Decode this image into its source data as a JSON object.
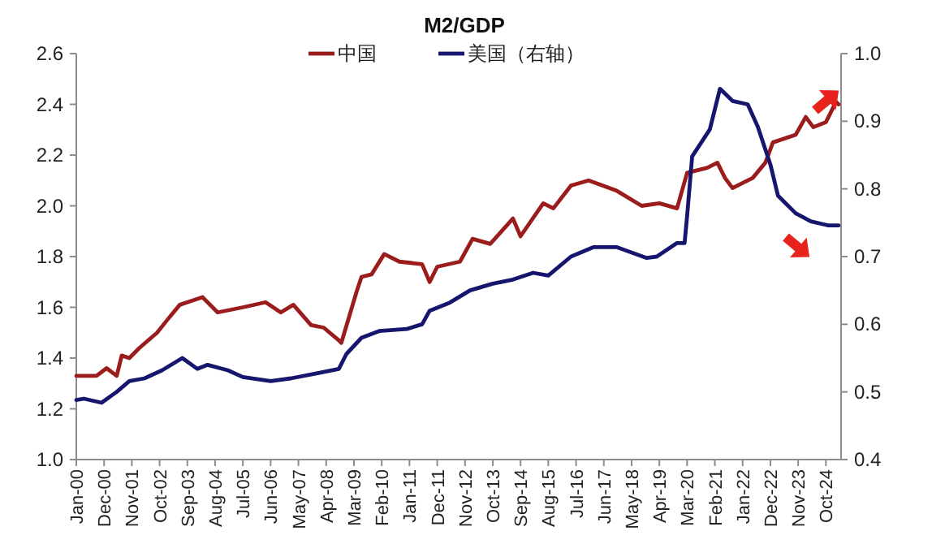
{
  "chart_data": {
    "type": "line",
    "title": "M2/GDP",
    "legend": "top",
    "line_style": "solid",
    "grid": false,
    "xlim": [
      "2000-01",
      "2025-04"
    ],
    "xticks": [
      {
        "value": "2000-01",
        "label": "Jan-00"
      },
      {
        "value": "2000-12",
        "label": "Dec-00"
      },
      {
        "value": "2001-11",
        "label": "Nov-01"
      },
      {
        "value": "2002-10",
        "label": "Oct-02"
      },
      {
        "value": "2003-09",
        "label": "Sep-03"
      },
      {
        "value": "2004-08",
        "label": "Aug-04"
      },
      {
        "value": "2005-07",
        "label": "Jul-05"
      },
      {
        "value": "2006-06",
        "label": "Jun-06"
      },
      {
        "value": "2007-05",
        "label": "May-07"
      },
      {
        "value": "2008-04",
        "label": "Apr-08"
      },
      {
        "value": "2009-03",
        "label": "Mar-09"
      },
      {
        "value": "2010-02",
        "label": "Feb-10"
      },
      {
        "value": "2011-01",
        "label": "Jan-11"
      },
      {
        "value": "2011-12",
        "label": "Dec-11"
      },
      {
        "value": "2012-11",
        "label": "Nov-12"
      },
      {
        "value": "2013-10",
        "label": "Oct-13"
      },
      {
        "value": "2014-09",
        "label": "Sep-14"
      },
      {
        "value": "2015-08",
        "label": "Aug-15"
      },
      {
        "value": "2016-07",
        "label": "Jul-16"
      },
      {
        "value": "2017-06",
        "label": "Jun-17"
      },
      {
        "value": "2018-05",
        "label": "May-18"
      },
      {
        "value": "2019-04",
        "label": "Apr-19"
      },
      {
        "value": "2020-03",
        "label": "Mar-20"
      },
      {
        "value": "2021-02",
        "label": "Feb-21"
      },
      {
        "value": "2022-01",
        "label": "Jan-22"
      },
      {
        "value": "2022-12",
        "label": "Dec-22"
      },
      {
        "value": "2023-11",
        "label": "Nov-23"
      },
      {
        "value": "2024-10",
        "label": "Oct-24"
      }
    ],
    "ylim": [
      1.0,
      2.6
    ],
    "yticks": [
      {
        "value": 1,
        "label": "1.0"
      },
      1.2,
      1.4,
      1.6,
      1.8,
      {
        "value": 2,
        "label": "2.0"
      },
      2.2,
      2.4,
      2.6
    ],
    "y2lim": [
      0.4,
      1.0
    ],
    "y2ticks": [
      0.4,
      0.5,
      0.6,
      0.7,
      0.8,
      0.9,
      {
        "value": 1,
        "label": "1.0"
      }
    ],
    "series": [
      {
        "name": "中国",
        "color": "#9b1c1c",
        "x": [
          "2000-01",
          "2000-09",
          "2001-01",
          "2001-05",
          "2001-07",
          "2001-10",
          "2002-02",
          "2002-09",
          "2003-01",
          "2003-06",
          "2003-09",
          "2004-03",
          "2004-09",
          "2005-07",
          "2006-04",
          "2006-10",
          "2007-03",
          "2007-10",
          "2008-03",
          "2008-09",
          "2008-10",
          "2009-04",
          "2009-06",
          "2009-10",
          "2010-03",
          "2010-09",
          "2011-06",
          "2011-09",
          "2011-12",
          "2012-09",
          "2013-02",
          "2013-09",
          "2014-06",
          "2014-09",
          "2015-06",
          "2015-10",
          "2016-05",
          "2016-12",
          "2017-11",
          "2018-09",
          "2019-04",
          "2019-11",
          "2020-03",
          "2020-11",
          "2021-03",
          "2021-06",
          "2021-09",
          "2022-05",
          "2022-10",
          "2023-01",
          "2023-10",
          "2024-02",
          "2024-05",
          "2024-10",
          "2025-02",
          "2025-03"
        ],
        "values": [
          1.33,
          1.33,
          1.36,
          1.33,
          1.41,
          1.4,
          1.44,
          1.5,
          1.55,
          1.61,
          1.62,
          1.64,
          1.58,
          1.6,
          1.62,
          1.58,
          1.61,
          1.53,
          1.52,
          1.47,
          1.46,
          1.66,
          1.72,
          1.73,
          1.81,
          1.78,
          1.77,
          1.7,
          1.76,
          1.78,
          1.87,
          1.85,
          1.95,
          1.88,
          2.01,
          1.99,
          2.08,
          2.1,
          2.06,
          2.0,
          2.01,
          1.99,
          2.13,
          2.15,
          2.17,
          2.11,
          2.07,
          2.11,
          2.17,
          2.25,
          2.28,
          2.35,
          2.31,
          2.33,
          2.41,
          2.4
        ]
      },
      {
        "name": "美国（右轴）",
        "color": "#16166e",
        "axis": "y2",
        "x": [
          "2000-01",
          "2000-04",
          "2000-11",
          "2001-05",
          "2001-10",
          "2002-04",
          "2002-11",
          "2003-07",
          "2004-01",
          "2004-05",
          "2005-01",
          "2005-07",
          "2006-06",
          "2007-02",
          "2008-01",
          "2008-09",
          "2008-12",
          "2009-06",
          "2010-01",
          "2010-12",
          "2011-06",
          "2011-09",
          "2012-05",
          "2013-01",
          "2013-10",
          "2014-06",
          "2015-02",
          "2015-08",
          "2016-05",
          "2017-02",
          "2017-11",
          "2018-11",
          "2019-03",
          "2019-11",
          "2020-02",
          "2020-03",
          "2020-05",
          "2020-12",
          "2021-04",
          "2021-09",
          "2022-03",
          "2022-07",
          "2022-12",
          "2023-03",
          "2023-10",
          "2024-04",
          "2024-11",
          "2025-03"
        ],
        "values": [
          0.488,
          0.49,
          0.484,
          0.5,
          0.516,
          0.52,
          0.532,
          0.55,
          0.534,
          0.54,
          0.532,
          0.522,
          0.516,
          0.52,
          0.528,
          0.534,
          0.556,
          0.58,
          0.59,
          0.593,
          0.6,
          0.62,
          0.632,
          0.65,
          0.66,
          0.666,
          0.676,
          0.672,
          0.7,
          0.714,
          0.714,
          0.698,
          0.7,
          0.72,
          0.72,
          0.76,
          0.848,
          0.888,
          0.948,
          0.93,
          0.925,
          0.892,
          0.836,
          0.79,
          0.764,
          0.752,
          0.746,
          0.746
        ]
      }
    ]
  }
}
